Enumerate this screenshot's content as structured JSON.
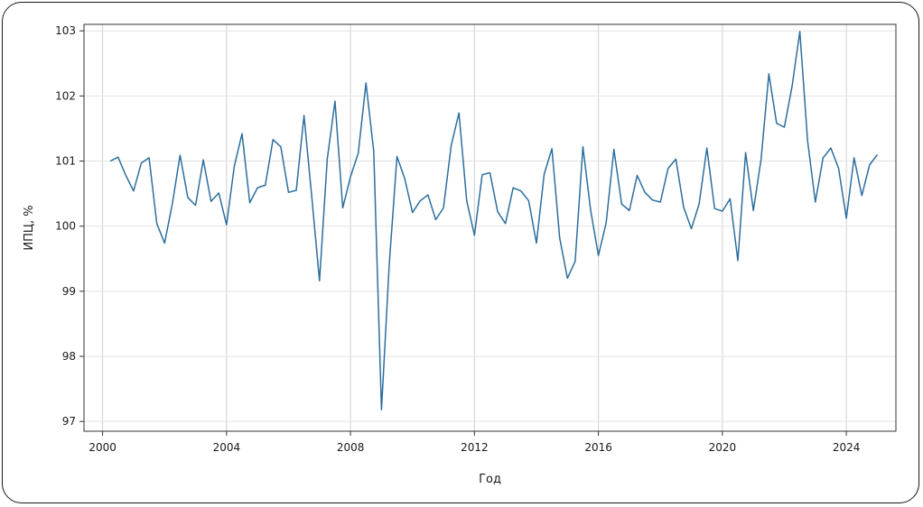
{
  "chart_data": {
    "type": "line",
    "title": "",
    "xlabel": "Год",
    "ylabel": "ИПЦ, %",
    "xlim": [
      1999.4,
      2025.6
    ],
    "ylim": [
      96.85,
      103.1
    ],
    "x_ticks": [
      2000,
      2004,
      2008,
      2012,
      2016,
      2020,
      2024
    ],
    "y_ticks": [
      97,
      98,
      99,
      100,
      101,
      102,
      103
    ],
    "grid": true,
    "legend": "none",
    "series": [
      {
        "color": "#2c6e9e",
        "x": [
          2000.25,
          2000.5,
          2000.75,
          2001.0,
          2001.25,
          2001.5,
          2001.75,
          2002.0,
          2002.25,
          2002.5,
          2002.75,
          2003.0,
          2003.25,
          2003.5,
          2003.75,
          2004.0,
          2004.25,
          2004.5,
          2004.75,
          2005.0,
          2005.25,
          2005.5,
          2005.75,
          2006.0,
          2006.25,
          2006.5,
          2006.75,
          2007.0,
          2007.25,
          2007.5,
          2007.75,
          2008.0,
          2008.25,
          2008.5,
          2008.75,
          2009.0,
          2009.25,
          2009.5,
          2009.75,
          2010.0,
          2010.25,
          2010.5,
          2010.75,
          2011.0,
          2011.25,
          2011.5,
          2011.75,
          2012.0,
          2012.25,
          2012.5,
          2012.75,
          2013.0,
          2013.25,
          2013.5,
          2013.75,
          2014.0,
          2014.25,
          2014.5,
          2014.75,
          2015.0,
          2015.25,
          2015.5,
          2015.75,
          2016.0,
          2016.25,
          2016.5,
          2016.75,
          2017.0,
          2017.25,
          2017.5,
          2017.75,
          2018.0,
          2018.25,
          2018.5,
          2018.75,
          2019.0,
          2019.25,
          2019.5,
          2019.75,
          2020.0,
          2020.25,
          2020.5,
          2020.75,
          2021.0,
          2021.25,
          2021.5,
          2021.75,
          2022.0,
          2022.25,
          2022.5,
          2022.75,
          2023.0,
          2023.25,
          2023.5,
          2023.75,
          2024.0,
          2024.25,
          2024.5,
          2024.75,
          2025.0
        ],
        "y": [
          101.0,
          101.06,
          100.78,
          100.54,
          100.97,
          101.05,
          100.04,
          99.74,
          100.34,
          101.09,
          100.44,
          100.32,
          101.02,
          100.38,
          100.51,
          100.02,
          100.92,
          101.42,
          100.36,
          100.59,
          100.63,
          101.33,
          101.22,
          100.52,
          100.55,
          101.7,
          100.45,
          99.16,
          101.03,
          101.92,
          100.28,
          100.76,
          101.12,
          102.2,
          101.15,
          97.18,
          99.41,
          101.07,
          100.73,
          100.21,
          100.39,
          100.48,
          100.1,
          100.28,
          101.24,
          101.74,
          100.39,
          99.86,
          100.79,
          100.82,
          100.22,
          100.04,
          100.59,
          100.54,
          100.39,
          99.74,
          100.8,
          101.19,
          99.82,
          99.2,
          99.46,
          101.22,
          100.24,
          99.55,
          100.05,
          101.18,
          100.34,
          100.24,
          100.78,
          100.52,
          100.4,
          100.37,
          100.89,
          101.03,
          100.29,
          99.96,
          100.34,
          101.2,
          100.27,
          100.23,
          100.42,
          99.47,
          101.13,
          100.24,
          101.03,
          102.34,
          101.58,
          101.52,
          102.15,
          102.99,
          101.31,
          100.37,
          101.05,
          101.2,
          100.89,
          100.12,
          101.05,
          100.47,
          100.94,
          101.1
        ]
      }
    ]
  }
}
